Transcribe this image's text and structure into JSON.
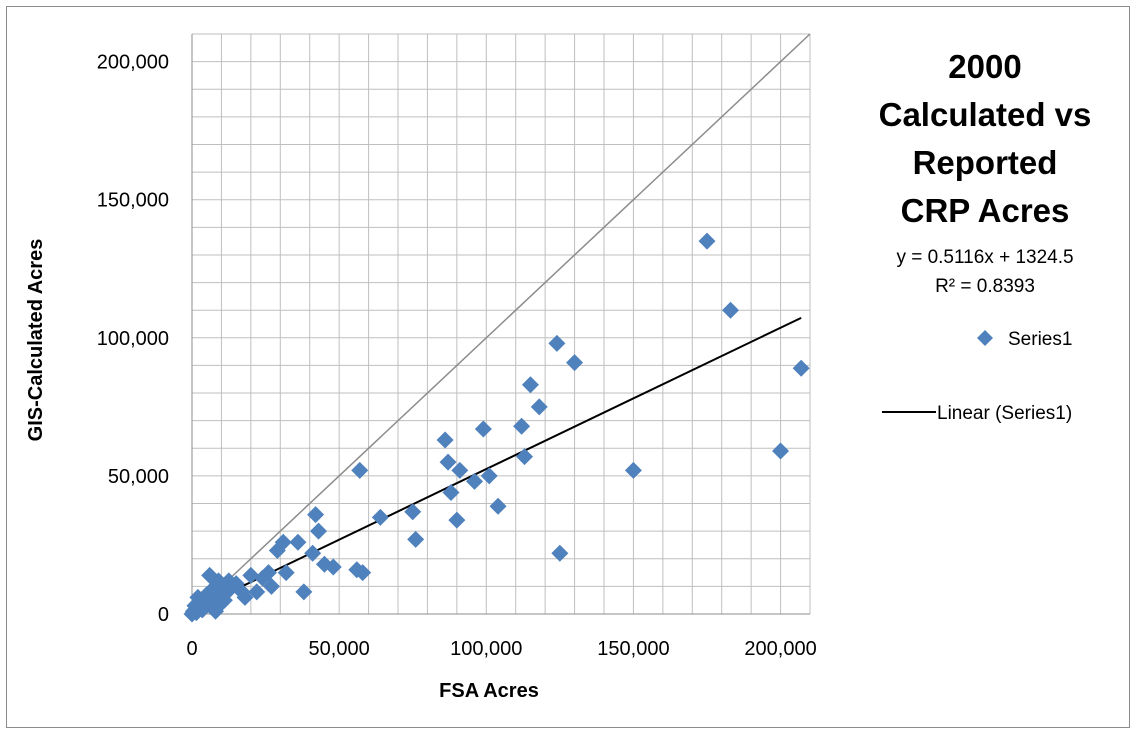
{
  "chart_data": {
    "type": "scatter",
    "title_lines": [
      "2000",
      "Calculated vs",
      "Reported",
      "CRP Acres"
    ],
    "xlabel": "FSA Acres",
    "ylabel": "GIS-Calculated Acres",
    "xlim": [
      0,
      210000
    ],
    "ylim": [
      0,
      210000
    ],
    "x_ticks": [
      0,
      50000,
      100000,
      150000,
      200000
    ],
    "x_tick_labels": [
      "0",
      "50,000",
      "100,000",
      "150,000",
      "200,000"
    ],
    "y_ticks": [
      0,
      50000,
      100000,
      150000,
      200000
    ],
    "y_tick_labels": [
      "0",
      "50,000",
      "100,000",
      "150,000",
      "200,000"
    ],
    "grid": true,
    "legend_position": "right",
    "marker_color": "#4f81bd",
    "trend_color": "#000000",
    "reference_color": "#8c8c8c",
    "trendline": {
      "name": "Linear (Series1)",
      "slope": 0.5116,
      "intercept": 1324.5,
      "equation": "y = 0.5116x + 1324.5",
      "r_squared": "R² = 0.8393"
    },
    "reference_line": {
      "slope": 1,
      "intercept": 0
    },
    "series": [
      {
        "name": "Series1",
        "points": [
          [
            0,
            0
          ],
          [
            500,
            1000
          ],
          [
            1000,
            3000
          ],
          [
            1500,
            500
          ],
          [
            2000,
            6000
          ],
          [
            2500,
            2000
          ],
          [
            3000,
            5000
          ],
          [
            3500,
            1500
          ],
          [
            4000,
            4000
          ],
          [
            5000,
            7000
          ],
          [
            6000,
            14000
          ],
          [
            6500,
            3000
          ],
          [
            7000,
            9000
          ],
          [
            7500,
            2500
          ],
          [
            8000,
            1000
          ],
          [
            8500,
            6000
          ],
          [
            9000,
            12000
          ],
          [
            10000,
            4000
          ],
          [
            10500,
            9000
          ],
          [
            11000,
            5000
          ],
          [
            12000,
            8000
          ],
          [
            12500,
            12000
          ],
          [
            13000,
            10000
          ],
          [
            15000,
            11000
          ],
          [
            17000,
            8000
          ],
          [
            18000,
            6000
          ],
          [
            20000,
            14000
          ],
          [
            22000,
            8000
          ],
          [
            24000,
            13000
          ],
          [
            26000,
            15000
          ],
          [
            27000,
            10000
          ],
          [
            29000,
            23000
          ],
          [
            31000,
            26000
          ],
          [
            32000,
            15000
          ],
          [
            36000,
            26000
          ],
          [
            38000,
            8000
          ],
          [
            41000,
            22000
          ],
          [
            42000,
            36000
          ],
          [
            43000,
            30000
          ],
          [
            45000,
            18000
          ],
          [
            48000,
            17000
          ],
          [
            57000,
            52000
          ],
          [
            56000,
            16000
          ],
          [
            58000,
            15000
          ],
          [
            64000,
            35000
          ],
          [
            75000,
            37000
          ],
          [
            76000,
            27000
          ],
          [
            86000,
            63000
          ],
          [
            87000,
            55000
          ],
          [
            88000,
            44000
          ],
          [
            90000,
            34000
          ],
          [
            91000,
            52000
          ],
          [
            96000,
            48000
          ],
          [
            99000,
            67000
          ],
          [
            101000,
            50000
          ],
          [
            104000,
            39000
          ],
          [
            112000,
            68000
          ],
          [
            113000,
            57000
          ],
          [
            115000,
            83000
          ],
          [
            118000,
            75000
          ],
          [
            124000,
            98000
          ],
          [
            125000,
            22000
          ],
          [
            130000,
            91000
          ],
          [
            150000,
            52000
          ],
          [
            175000,
            135000
          ],
          [
            183000,
            110000
          ],
          [
            200000,
            59000
          ],
          [
            207000,
            89000
          ]
        ]
      }
    ]
  }
}
